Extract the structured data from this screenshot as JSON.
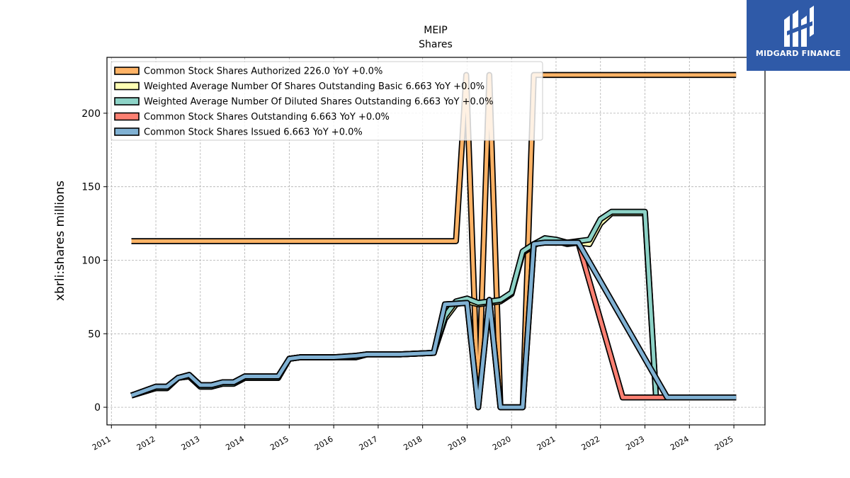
{
  "chart_data": {
    "type": "line",
    "title": "MEIP",
    "subtitle": "Shares",
    "ylabel": "xbrli:shares millions",
    "xlabel": "",
    "xlim": [
      2010.9,
      2025.7
    ],
    "ylim": [
      -12,
      238
    ],
    "yticks": [
      0,
      50,
      100,
      150,
      200
    ],
    "xticks": [
      "2011",
      "2012",
      "2013",
      "2014",
      "2015",
      "2016",
      "2017",
      "2018",
      "2019",
      "2020",
      "2021",
      "2022",
      "2023",
      "2024",
      "2025"
    ],
    "grid": true,
    "legend_position": "top-left",
    "series": [
      {
        "name": "Common Stock Shares Authorized  226.0 YoY +0.0%",
        "color": "#ffb366",
        "points": [
          [
            2011.45,
            113
          ],
          [
            2018.75,
            113
          ],
          [
            2018.98,
            226
          ],
          [
            2019.25,
            0
          ],
          [
            2019.5,
            226
          ],
          [
            2019.75,
            0
          ],
          [
            2020.25,
            0
          ],
          [
            2020.5,
            226
          ],
          [
            2021.0,
            226
          ],
          [
            2025.05,
            226
          ]
        ]
      },
      {
        "name": "Weighted Average Number Of Shares Outstanding Basic  6.663 YoY +0.0%",
        "color": "#ffffb3",
        "points": [
          [
            2011.45,
            8
          ],
          [
            2012.0,
            13
          ],
          [
            2012.25,
            13
          ],
          [
            2012.5,
            20
          ],
          [
            2012.75,
            21
          ],
          [
            2013.0,
            14
          ],
          [
            2013.25,
            14
          ],
          [
            2013.5,
            16
          ],
          [
            2013.75,
            16
          ],
          [
            2014.0,
            20
          ],
          [
            2014.75,
            20
          ],
          [
            2015.0,
            33
          ],
          [
            2015.25,
            34
          ],
          [
            2016.0,
            34
          ],
          [
            2016.5,
            34
          ],
          [
            2016.75,
            36
          ],
          [
            2017.0,
            36
          ],
          [
            2017.5,
            36
          ],
          [
            2018.25,
            37
          ],
          [
            2018.5,
            60
          ],
          [
            2018.75,
            70
          ],
          [
            2019.0,
            72
          ],
          [
            2019.25,
            70
          ],
          [
            2019.5,
            71
          ],
          [
            2019.75,
            72
          ],
          [
            2020.0,
            77
          ],
          [
            2020.25,
            105
          ],
          [
            2020.5,
            110
          ],
          [
            2020.75,
            114
          ],
          [
            2021.0,
            113
          ],
          [
            2021.25,
            111
          ],
          [
            2021.5,
            112
          ],
          [
            2021.75,
            111
          ],
          [
            2022.0,
            125
          ],
          [
            2022.25,
            132
          ],
          [
            2022.5,
            132
          ],
          [
            2022.75,
            132
          ],
          [
            2023.0,
            132
          ],
          [
            2023.25,
            6.663
          ],
          [
            2023.5,
            6.663
          ],
          [
            2025.05,
            6.663
          ]
        ]
      },
      {
        "name": "Weighted Average Number Of Diluted Shares Outstanding  6.663 YoY +0.0%",
        "color": "#8dd3c7",
        "points": [
          [
            2011.45,
            8
          ],
          [
            2012.0,
            13
          ],
          [
            2012.25,
            13
          ],
          [
            2012.5,
            20
          ],
          [
            2012.75,
            21
          ],
          [
            2013.0,
            14
          ],
          [
            2013.25,
            14
          ],
          [
            2013.5,
            16
          ],
          [
            2013.75,
            16
          ],
          [
            2014.0,
            20
          ],
          [
            2014.75,
            20
          ],
          [
            2015.0,
            33
          ],
          [
            2015.25,
            34
          ],
          [
            2016.0,
            34
          ],
          [
            2016.5,
            34
          ],
          [
            2016.75,
            36
          ],
          [
            2017.0,
            36
          ],
          [
            2017.5,
            36
          ],
          [
            2018.25,
            37
          ],
          [
            2018.5,
            62
          ],
          [
            2018.75,
            72
          ],
          [
            2019.0,
            74
          ],
          [
            2019.25,
            71
          ],
          [
            2019.5,
            72
          ],
          [
            2019.75,
            73
          ],
          [
            2020.0,
            78
          ],
          [
            2020.25,
            106
          ],
          [
            2020.5,
            111
          ],
          [
            2020.75,
            115
          ],
          [
            2021.0,
            114
          ],
          [
            2021.25,
            112
          ],
          [
            2021.5,
            113
          ],
          [
            2021.75,
            114
          ],
          [
            2022.0,
            128
          ],
          [
            2022.25,
            133
          ],
          [
            2022.5,
            133
          ],
          [
            2022.75,
            133
          ],
          [
            2023.0,
            133
          ],
          [
            2023.25,
            6.663
          ],
          [
            2023.5,
            6.663
          ],
          [
            2025.05,
            6.663
          ]
        ]
      },
      {
        "name": "Common Stock Shares Outstanding  6.663 YoY +0.0%",
        "color": "#fb8072",
        "points": [
          [
            2011.45,
            8
          ],
          [
            2012.0,
            14
          ],
          [
            2012.25,
            14
          ],
          [
            2012.5,
            20
          ],
          [
            2012.75,
            22
          ],
          [
            2013.0,
            15
          ],
          [
            2013.25,
            15
          ],
          [
            2013.5,
            17
          ],
          [
            2013.75,
            17
          ],
          [
            2014.0,
            21
          ],
          [
            2014.75,
            21
          ],
          [
            2015.0,
            33
          ],
          [
            2015.25,
            34
          ],
          [
            2016.0,
            34
          ],
          [
            2016.5,
            35
          ],
          [
            2016.75,
            36
          ],
          [
            2017.0,
            36
          ],
          [
            2017.5,
            36
          ],
          [
            2018.25,
            37
          ],
          [
            2018.5,
            70
          ],
          [
            2019.0,
            71
          ],
          [
            2019.25,
            0
          ],
          [
            2019.5,
            73
          ],
          [
            2019.75,
            0
          ],
          [
            2020.25,
            0
          ],
          [
            2020.5,
            111
          ],
          [
            2020.75,
            112
          ],
          [
            2021.5,
            112
          ],
          [
            2022.5,
            6.663
          ],
          [
            2023.5,
            6.663
          ],
          [
            2025.05,
            6.663
          ]
        ]
      },
      {
        "name": "Common Stock Shares Issued  6.663 YoY +0.0%",
        "color": "#80b1d3",
        "points": [
          [
            2011.45,
            8
          ],
          [
            2012.0,
            14
          ],
          [
            2012.25,
            14
          ],
          [
            2012.5,
            20
          ],
          [
            2012.75,
            22
          ],
          [
            2013.0,
            15
          ],
          [
            2013.25,
            15
          ],
          [
            2013.5,
            17
          ],
          [
            2013.75,
            17
          ],
          [
            2014.0,
            21
          ],
          [
            2014.75,
            21
          ],
          [
            2015.0,
            33
          ],
          [
            2015.25,
            34
          ],
          [
            2016.0,
            34
          ],
          [
            2016.5,
            35
          ],
          [
            2016.75,
            36
          ],
          [
            2017.0,
            36
          ],
          [
            2017.5,
            36
          ],
          [
            2018.25,
            37
          ],
          [
            2018.5,
            70
          ],
          [
            2019.0,
            71
          ],
          [
            2019.25,
            0
          ],
          [
            2019.5,
            73
          ],
          [
            2019.75,
            0
          ],
          [
            2020.25,
            0
          ],
          [
            2020.5,
            111
          ],
          [
            2020.75,
            112
          ],
          [
            2021.5,
            112
          ],
          [
            2023.5,
            6.663
          ],
          [
            2025.05,
            6.663
          ]
        ]
      }
    ]
  },
  "logo": {
    "text": "MIDGARD FINANCE",
    "color": "#2f5aa8"
  }
}
